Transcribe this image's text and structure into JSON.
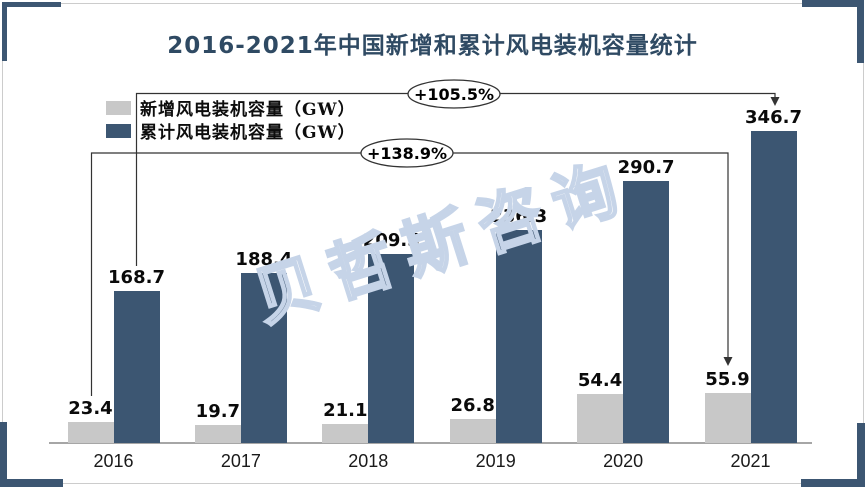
{
  "title": "2016-2021年中国新增和累计风电装机容量统计",
  "watermark": "贝哲斯咨询",
  "colors": {
    "navy": "#3C5672",
    "new_series_gray": "#C8C8C8",
    "title_color": "#2F4A63",
    "watermark_blue": "#C6D4E8",
    "axis_gray": "#A6A6A6",
    "border_gray": "#CCCCCC",
    "annotation_line": "#333333"
  },
  "chart_data": {
    "type": "bar",
    "title": "2016-2021年中国新增和累计风电装机容量统计",
    "categories": [
      "2016",
      "2017",
      "2018",
      "2019",
      "2020",
      "2021"
    ],
    "series": [
      {
        "name": "新增风电装机容量（GW）",
        "color": "#C8C8C8",
        "values": [
          23.4,
          19.7,
          21.1,
          26.8,
          54.4,
          55.9
        ]
      },
      {
        "name": "累计风电装机容量（GW）",
        "color": "#3C5672",
        "values": [
          168.7,
          188.4,
          209.5,
          236.3,
          290.7,
          346.7
        ]
      }
    ],
    "xlabel": "",
    "ylabel": "",
    "ylim": [
      0,
      390
    ],
    "grid": false,
    "y_axis_visible": false,
    "legend_position": "top-left",
    "annotations": [
      {
        "label": "+105.5%",
        "from_category": "2016",
        "from_value": 168.7,
        "to_category": "2021",
        "to_value": 346.7,
        "series": "累计风电装机容量（GW）"
      },
      {
        "label": "+138.9%",
        "from_category": "2016",
        "from_value": 23.4,
        "to_category": "2021",
        "to_value": 55.9,
        "series": "新增风电装机容量（GW）"
      }
    ]
  }
}
